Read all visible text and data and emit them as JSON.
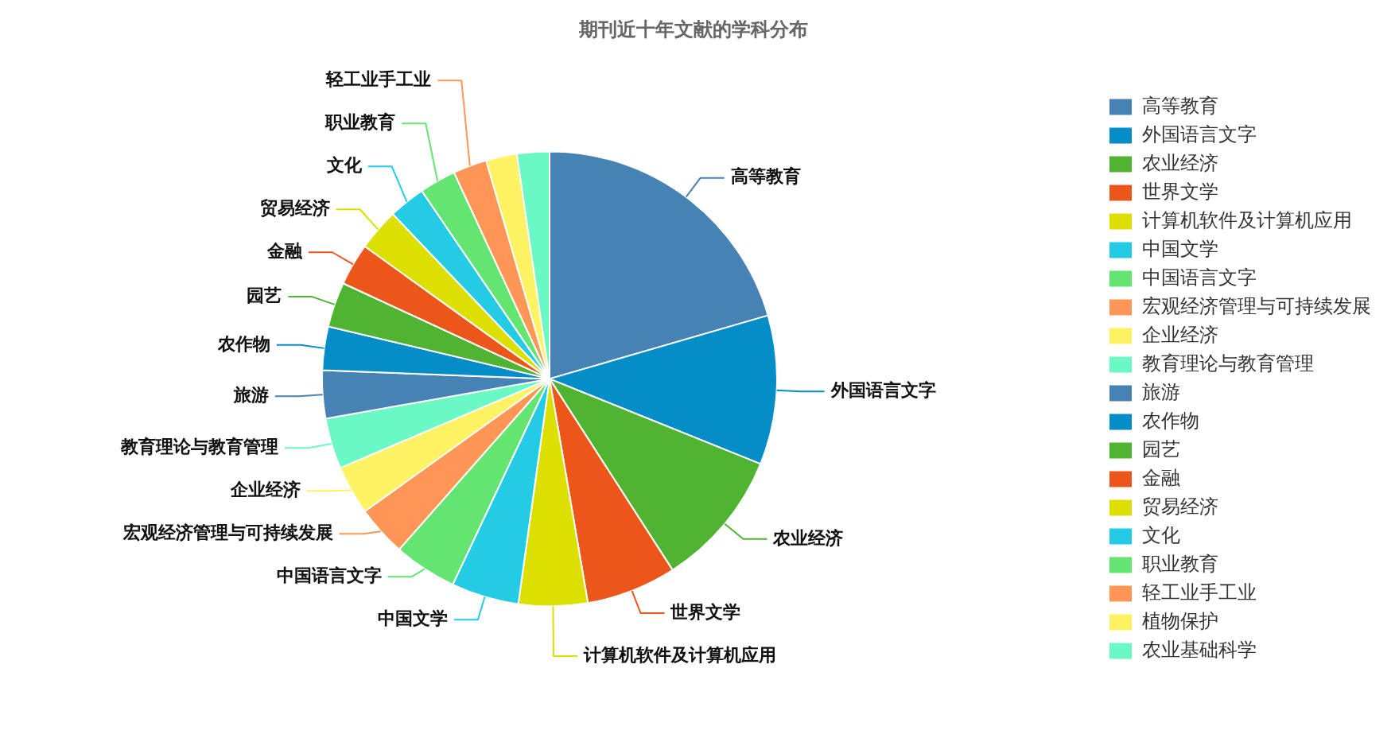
{
  "chart_data": {
    "type": "pie",
    "title": "期刊近十年文献的学科分布",
    "categories": [
      "高等教育",
      "外国语言文字",
      "农业经济",
      "世界文学",
      "计算机软件及计算机应用",
      "中国文学",
      "中国语言文字",
      "宏观经济管理与可持续发展",
      "企业经济",
      "教育理论与教育管理",
      "旅游",
      "农作物",
      "园艺",
      "金融",
      "贸易经济",
      "文化",
      "职业教育",
      "轻工业手工业",
      "植物保护",
      "农业基础科学"
    ],
    "values": [
      20.5,
      10.6,
      9.8,
      6.4,
      4.9,
      4.8,
      4.5,
      3.6,
      3.5,
      3.6,
      3.4,
      3.1,
      3.2,
      3.0,
      3.0,
      2.6,
      2.6,
      2.4,
      2.2,
      2.3
    ],
    "colors": [
      "#4682b4",
      "#058dc7",
      "#50b432",
      "#ed561b",
      "#dddf00",
      "#24cbe5",
      "#64e572",
      "#ff9655",
      "#fff263",
      "#6af9c4",
      "#4682b4",
      "#058dc7",
      "#50b432",
      "#ed561b",
      "#dddf00",
      "#24cbe5",
      "#64e572",
      "#ff9655",
      "#fff263",
      "#6af9c4"
    ],
    "legend": "right"
  }
}
